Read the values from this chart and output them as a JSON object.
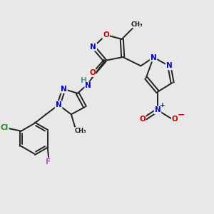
{
  "background_color": "#e8e8e8",
  "bond_color": "#222222",
  "bond_width": 1.4,
  "atom_colors": {
    "C": "#1a1a1a",
    "N": "#0000cc",
    "O": "#cc0000",
    "H": "#4a9a9a",
    "Cl": "#228822",
    "F": "#cc44cc",
    "plus": "#0000cc",
    "minus": "#cc0000"
  },
  "fs": 7.5,
  "fss": 6.5
}
